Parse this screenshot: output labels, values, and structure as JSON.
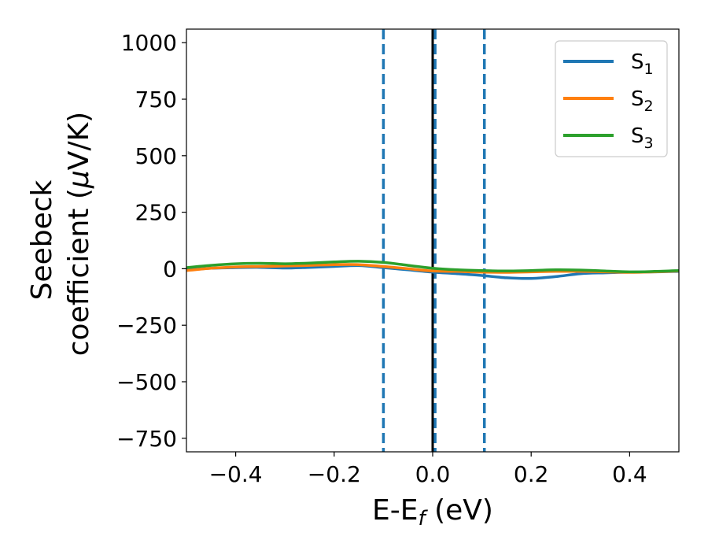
{
  "chart_data": {
    "type": "line",
    "xlabel_main": "E-E",
    "xlabel_sub": "f",
    "xlabel_unit": " (eV)",
    "ylabel_line1": "Seebeck",
    "ylabel_line2_text": "coefficient  (",
    "ylabel_line2_mu": "μ",
    "ylabel_line2_unit": "V/K)",
    "xlim": [
      -0.5,
      0.5
    ],
    "ylim": [
      -810,
      1060
    ],
    "xticks": [
      -0.4,
      -0.2,
      0.0,
      0.2,
      0.4
    ],
    "xtick_labels": [
      "−0.4",
      "−0.2",
      "0.0",
      "0.2",
      "0.4"
    ],
    "yticks": [
      1000,
      750,
      500,
      250,
      0,
      -250,
      -500,
      -750
    ],
    "ytick_labels": [
      "1000",
      "750",
      "500",
      "250",
      "0",
      "−250",
      "−500",
      "−750"
    ],
    "legend_position": "top-right",
    "series": [
      {
        "name": "S",
        "name_sub": "1",
        "color": "#1f77b4",
        "x": [
          -0.5,
          -0.45,
          -0.4,
          -0.35,
          -0.3,
          -0.25,
          -0.2,
          -0.15,
          -0.1,
          -0.05,
          0.0,
          0.05,
          0.1,
          0.15,
          0.2,
          0.25,
          0.3,
          0.35,
          0.4,
          0.45,
          0.5
        ],
        "values": [
          -5,
          2,
          5,
          6,
          3,
          6,
          10,
          14,
          5,
          -5,
          -15,
          -22,
          -30,
          -40,
          -43,
          -35,
          -22,
          -18,
          -15,
          -14,
          -12
        ]
      },
      {
        "name": "S",
        "name_sub": "2",
        "color": "#ff7f0e",
        "x": [
          -0.5,
          -0.45,
          -0.4,
          -0.35,
          -0.3,
          -0.25,
          -0.2,
          -0.15,
          -0.1,
          -0.05,
          0.0,
          0.05,
          0.1,
          0.15,
          0.2,
          0.25,
          0.3,
          0.35,
          0.4,
          0.45,
          0.5
        ],
        "values": [
          -8,
          2,
          8,
          10,
          12,
          15,
          18,
          18,
          10,
          0,
          -10,
          -12,
          -15,
          -16,
          -14,
          -12,
          -12,
          -14,
          -16,
          -14,
          -10
        ]
      },
      {
        "name": "S",
        "name_sub": "3",
        "color": "#2ca02c",
        "x": [
          -0.5,
          -0.45,
          -0.4,
          -0.35,
          -0.3,
          -0.25,
          -0.2,
          -0.15,
          -0.1,
          -0.05,
          0.0,
          0.05,
          0.1,
          0.15,
          0.2,
          0.25,
          0.3,
          0.35,
          0.4,
          0.45,
          0.5
        ],
        "values": [
          5,
          15,
          22,
          24,
          22,
          25,
          30,
          33,
          28,
          15,
          2,
          -5,
          -8,
          -10,
          -8,
          -5,
          -6,
          -10,
          -14,
          -12,
          -8
        ]
      }
    ],
    "vlines": [
      {
        "x": -0.1,
        "style": "dashed",
        "color": "#1f77b4"
      },
      {
        "x": 0.0,
        "style": "solid",
        "color": "#000000"
      },
      {
        "x": 0.005,
        "style": "dashed",
        "color": "#1f77b4"
      },
      {
        "x": 0.105,
        "style": "dashed",
        "color": "#1f77b4"
      }
    ]
  }
}
